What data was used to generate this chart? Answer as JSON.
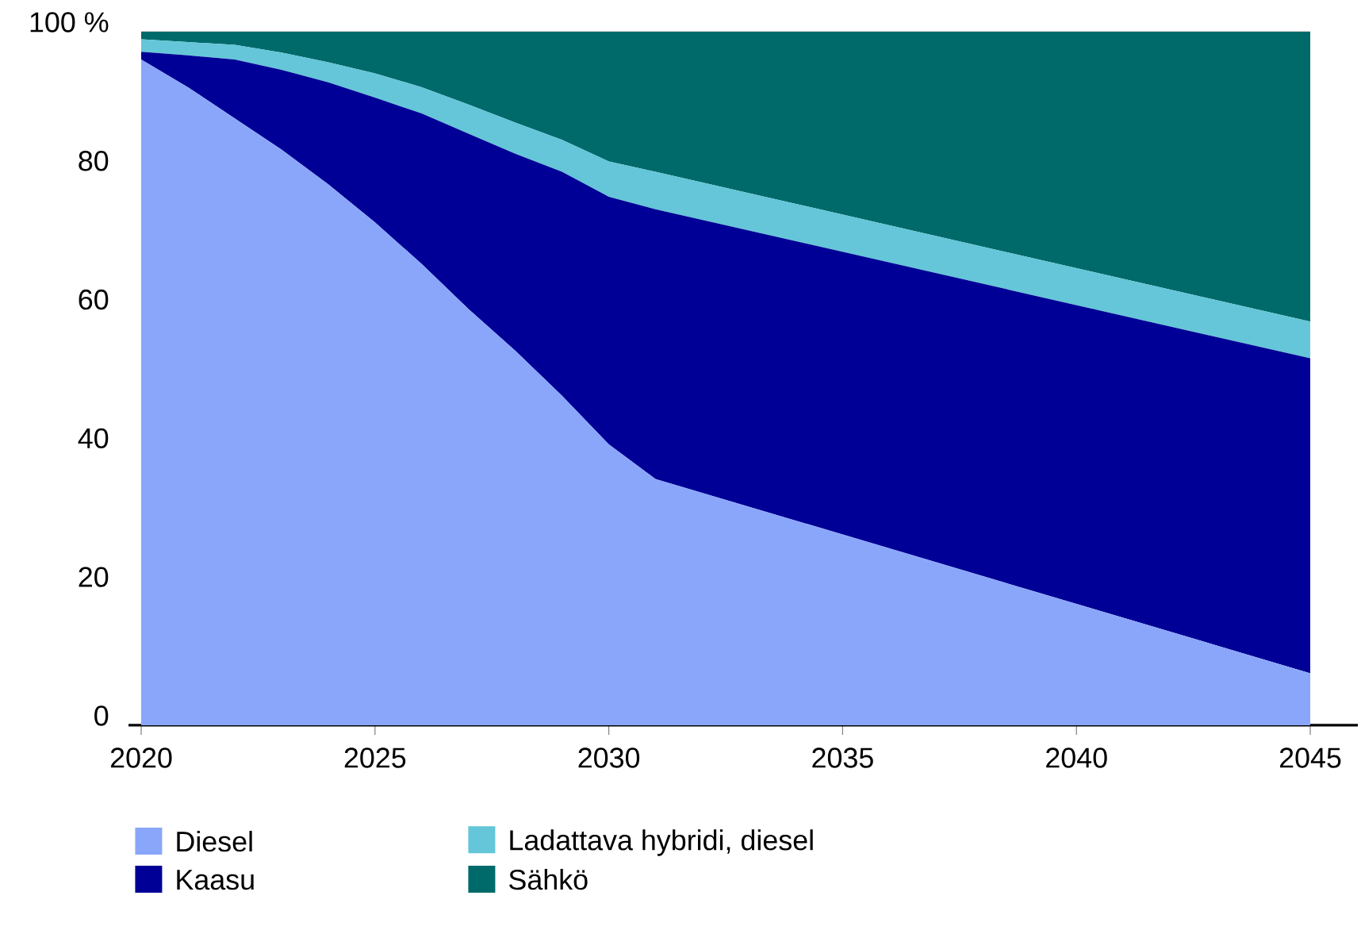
{
  "chart_data": {
    "type": "area",
    "stacked": true,
    "x": [
      2020,
      2021,
      2022,
      2023,
      2024,
      2025,
      2026,
      2027,
      2028,
      2029,
      2030,
      2031,
      2045
    ],
    "series": [
      {
        "name": "Diesel",
        "color": "#8aa6fb",
        "values": [
          96,
          92,
          87.5,
          83,
          78,
          72.5,
          66.5,
          60,
          54,
          47.5,
          40.5,
          35.5,
          7.5
        ]
      },
      {
        "name": "Kaasu",
        "color": "#000096",
        "values": [
          1.1,
          4.6,
          8.5,
          11.5,
          14.7,
          18,
          21.7,
          25.3,
          28.4,
          32.3,
          35.7,
          38.9,
          45.4
        ]
      },
      {
        "name": "Ladattava hybridi, diesel",
        "color": "#64c6d8",
        "values": [
          1.8,
          1.9,
          2.1,
          2.5,
          2.9,
          3.5,
          3.8,
          4.2,
          4.5,
          4.6,
          5.1,
          5.4,
          5.3
        ]
      },
      {
        "name": "Sähkö",
        "color": "#006a6a",
        "values": [
          1.1,
          1.5,
          1.9,
          3,
          4.4,
          6,
          8,
          10.5,
          13.1,
          15.6,
          18.7,
          20.2,
          41.8
        ]
      }
    ],
    "xlim": [
      2020,
      2045
    ],
    "ylim": [
      0,
      100
    ],
    "xticks": [
      2020,
      2025,
      2030,
      2035,
      2040,
      2045
    ],
    "yticks": [
      0,
      20,
      40,
      60,
      80,
      {
        "value": 100,
        "label": "100 %"
      }
    ],
    "grid": "y",
    "legend": "bottom"
  }
}
